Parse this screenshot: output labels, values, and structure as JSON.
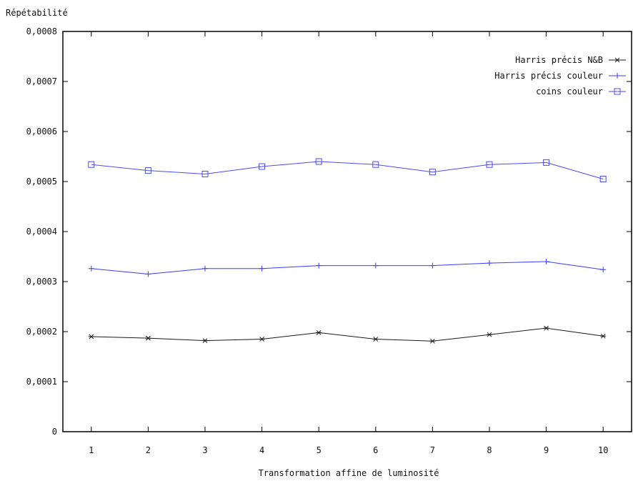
{
  "chart_data": {
    "type": "line",
    "ylabel": "Répétabilité",
    "xlabel": "Transformation affine de luminosité",
    "x": [
      1,
      2,
      3,
      4,
      5,
      6,
      7,
      8,
      9,
      10
    ],
    "xticks": [
      "1",
      "2",
      "3",
      "4",
      "5",
      "6",
      "7",
      "8",
      "9",
      "10"
    ],
    "xlim": [
      0.5,
      10.5
    ],
    "ylim": [
      0,
      0.0008
    ],
    "yticks": [
      0,
      0.0001,
      0.0002,
      0.0003,
      0.0004,
      0.0005,
      0.0006,
      0.0007,
      0.0008
    ],
    "ytick_labels": [
      "0",
      "0,0001",
      "0,0002",
      "0,0003",
      "0,0004",
      "0,0005",
      "0,0006",
      "0,0007",
      "0,0008"
    ],
    "grid": false,
    "legend_position": "top-right",
    "series": [
      {
        "name": "Harris précis N&B",
        "color": "#1a1a1a",
        "marker": "star",
        "values": [
          0.00019,
          0.000187,
          0.000182,
          0.000185,
          0.000198,
          0.000185,
          0.000181,
          0.000194,
          0.000207,
          0.000191
        ]
      },
      {
        "name": "Harris précis couleur",
        "color": "#3a3aff",
        "marker": "plus",
        "values": [
          0.000326,
          0.000315,
          0.000326,
          0.000326,
          0.000332,
          0.000332,
          0.000332,
          0.000337,
          0.00034,
          0.000324
        ]
      },
      {
        "name": "coins couleur",
        "color": "#4a4aff",
        "marker": "square",
        "values": [
          0.000534,
          0.000522,
          0.000515,
          0.00053,
          0.00054,
          0.000534,
          0.000519,
          0.000534,
          0.000538,
          0.000505
        ]
      }
    ]
  }
}
